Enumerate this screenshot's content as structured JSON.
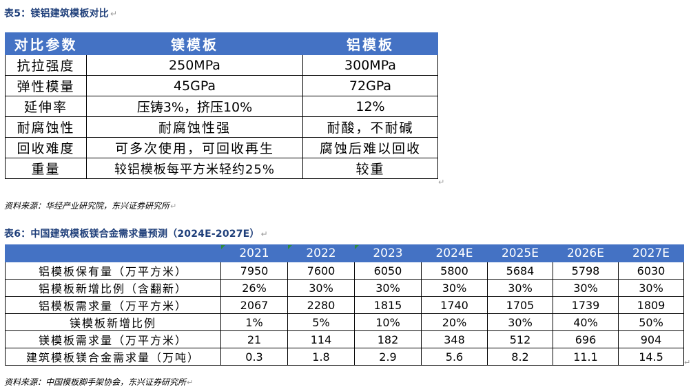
{
  "table5": {
    "caption": "表5：镁铝建筑模板对比",
    "headers": [
      "对比参数",
      "镁模板",
      "铝模板"
    ],
    "rows": [
      [
        "抗拉强度",
        "250MPa",
        "300MPa"
      ],
      [
        "弹性模量",
        "45GPa",
        "72GPa"
      ],
      [
        "延伸率",
        "压铸3%，挤压10%",
        "12%"
      ],
      [
        "耐腐蚀性",
        "耐腐蚀性强",
        "耐酸，不耐碱"
      ],
      [
        "回收难度",
        "可多次使用，可回收再生",
        "腐蚀后难以回收"
      ],
      [
        "重量",
        "较铝模板每平方米轻约25%",
        "较重"
      ]
    ],
    "source": "资料来源：华经产业研究院，东兴证券研究所"
  },
  "table6": {
    "caption": "表6：中国建筑模板镁合金需求量预测（2024E-2027E）",
    "headers": [
      "",
      "2021",
      "2022",
      "2023",
      "2024E",
      "2025E",
      "2026E",
      "2027E"
    ],
    "rows": [
      [
        "铝模板保有量（万平方米）",
        "7950",
        "7600",
        "6050",
        "5800",
        "5684",
        "5798",
        "6030"
      ],
      [
        "铝模板新增比例（含翻新）",
        "26%",
        "30%",
        "30%",
        "30%",
        "30%",
        "30%",
        "30%"
      ],
      [
        "铝模板需求量（万平方米）",
        "2067",
        "2280",
        "1815",
        "1740",
        "1705",
        "1739",
        "1809"
      ],
      [
        "镁模板新增比例",
        "1%",
        "5%",
        "10%",
        "20%",
        "30%",
        "40%",
        "50%"
      ],
      [
        "镁模板需求量（万平方米）",
        "21",
        "114",
        "182",
        "348",
        "512",
        "696",
        "904"
      ],
      [
        "建筑模板镁合金需求量（万吨）",
        "0.3",
        "1.8",
        "2.9",
        "5.6",
        "8.2",
        "11.1",
        "14.5"
      ]
    ],
    "source": "资料来源：中国模板脚手架协会，东兴证券研究所"
  },
  "colors": {
    "header_bg": "#4472c4",
    "caption_text": "#1f3f7a",
    "paragraph_mark": "#9a9a9a"
  }
}
